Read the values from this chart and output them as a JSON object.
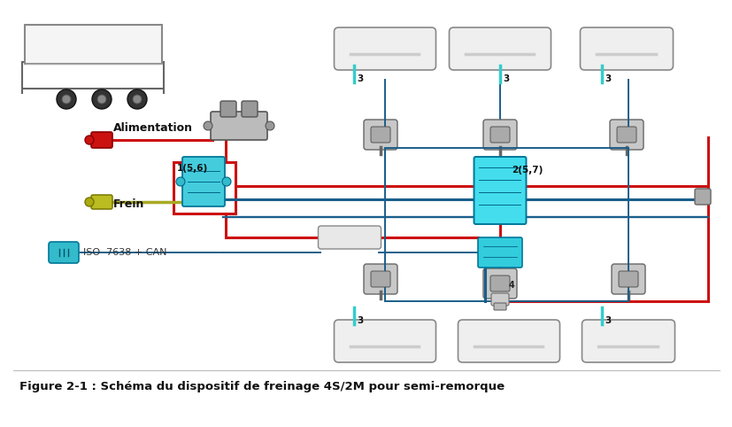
{
  "title": "Figure 2-1 : Schéma du dispositif de freinage 4S/2M pour semi-remorque",
  "title_fontsize": 9.5,
  "title_color": "#111111",
  "bg_color": "#ffffff",
  "red": "#cc1111",
  "blue": "#1a5f8a",
  "olive": "#aaaa22",
  "cyan_comp": "#33cccc",
  "cyan_dark": "#008899",
  "gray_dark": "#555555",
  "gray_med": "#888888",
  "gray_light": "#dddddd",
  "gray_tank": "#e0e0e0",
  "label_alimentation": "Alimentation",
  "label_frein": "Frein",
  "label_iso": "ISO  7638 + CAN",
  "label_1": "1(5,6)",
  "label_2": "2(5,7)",
  "label_3": "3",
  "label_4": "4",
  "lw_main": 2.2,
  "lw_thin": 1.4
}
